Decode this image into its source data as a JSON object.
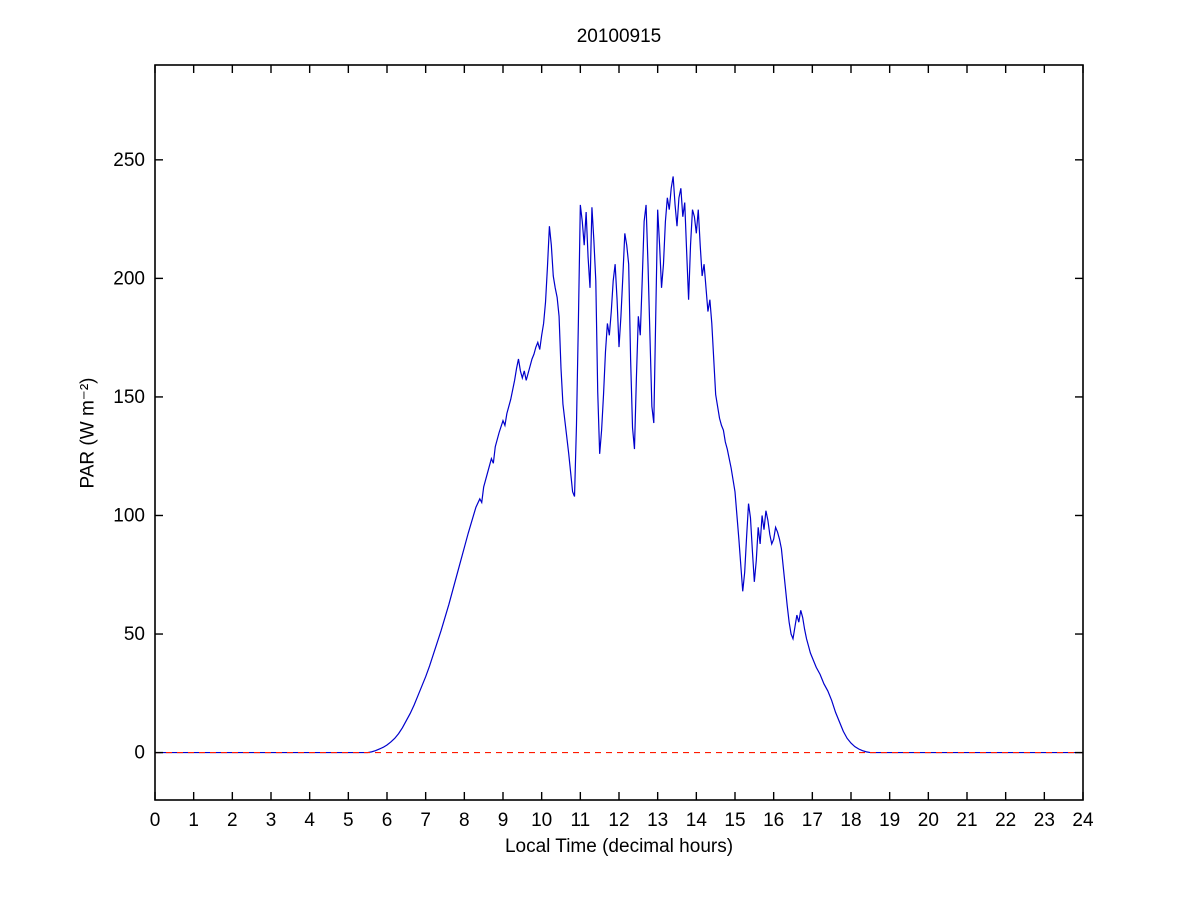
{
  "chart_data": {
    "type": "line",
    "title": "20100915",
    "xlabel": "Local Time (decimal hours)",
    "ylabel": "PAR (W m⁻²)",
    "xlim": [
      0,
      24
    ],
    "ylim": [
      -20,
      290
    ],
    "x_ticks": [
      0,
      1,
      2,
      3,
      4,
      5,
      6,
      7,
      8,
      9,
      10,
      11,
      12,
      13,
      14,
      15,
      16,
      17,
      18,
      19,
      20,
      21,
      22,
      23,
      24
    ],
    "y_ticks": [
      0,
      50,
      100,
      150,
      200,
      250
    ],
    "grid": false,
    "legend": null,
    "frame_color": "#000000",
    "series": [
      {
        "name": "par",
        "color": "#0000CC",
        "style": "solid",
        "width": 1.2,
        "points": [
          [
            0,
            0
          ],
          [
            0.5,
            0
          ],
          [
            1,
            0
          ],
          [
            1.5,
            0
          ],
          [
            2,
            0
          ],
          [
            2.5,
            0
          ],
          [
            3,
            0
          ],
          [
            3.5,
            0
          ],
          [
            4,
            0
          ],
          [
            4.5,
            0
          ],
          [
            5,
            0
          ],
          [
            5.3,
            0
          ],
          [
            5.5,
            0
          ],
          [
            5.6,
            0.3
          ],
          [
            5.7,
            0.8
          ],
          [
            5.8,
            1.5
          ],
          [
            5.9,
            2.2
          ],
          [
            6,
            3.2
          ],
          [
            6.1,
            4.5
          ],
          [
            6.2,
            6
          ],
          [
            6.3,
            8
          ],
          [
            6.4,
            10.5
          ],
          [
            6.5,
            13.5
          ],
          [
            6.6,
            16.5
          ],
          [
            6.7,
            20
          ],
          [
            6.8,
            24
          ],
          [
            6.9,
            28
          ],
          [
            7,
            32
          ],
          [
            7.1,
            36.5
          ],
          [
            7.2,
            41.5
          ],
          [
            7.3,
            46.5
          ],
          [
            7.4,
            51.5
          ],
          [
            7.5,
            57
          ],
          [
            7.6,
            62.5
          ],
          [
            7.7,
            68.5
          ],
          [
            7.8,
            74.5
          ],
          [
            7.9,
            80.5
          ],
          [
            8,
            86.5
          ],
          [
            8.1,
            92.5
          ],
          [
            8.2,
            98
          ],
          [
            8.3,
            103.5
          ],
          [
            8.4,
            107
          ],
          [
            8.45,
            105.5
          ],
          [
            8.5,
            112
          ],
          [
            8.6,
            118
          ],
          [
            8.7,
            124
          ],
          [
            8.75,
            122
          ],
          [
            8.8,
            129
          ],
          [
            8.9,
            135
          ],
          [
            9,
            140
          ],
          [
            9.05,
            138
          ],
          [
            9.1,
            143
          ],
          [
            9.2,
            149
          ],
          [
            9.3,
            157
          ],
          [
            9.35,
            162
          ],
          [
            9.4,
            166
          ],
          [
            9.45,
            161
          ],
          [
            9.5,
            158
          ],
          [
            9.55,
            161
          ],
          [
            9.6,
            157
          ],
          [
            9.65,
            160
          ],
          [
            9.7,
            163
          ],
          [
            9.75,
            166
          ],
          [
            9.8,
            168
          ],
          [
            9.85,
            171
          ],
          [
            9.9,
            173
          ],
          [
            9.95,
            170
          ],
          [
            10,
            176
          ],
          [
            10.05,
            181
          ],
          [
            10.1,
            190
          ],
          [
            10.15,
            205
          ],
          [
            10.2,
            222
          ],
          [
            10.25,
            214
          ],
          [
            10.3,
            201
          ],
          [
            10.35,
            196
          ],
          [
            10.4,
            192
          ],
          [
            10.45,
            184
          ],
          [
            10.5,
            162
          ],
          [
            10.55,
            147
          ],
          [
            10.6,
            140
          ],
          [
            10.65,
            133
          ],
          [
            10.7,
            126
          ],
          [
            10.75,
            118
          ],
          [
            10.8,
            110
          ],
          [
            10.85,
            108
          ],
          [
            10.9,
            138
          ],
          [
            10.95,
            182
          ],
          [
            11,
            231
          ],
          [
            11.05,
            224
          ],
          [
            11.1,
            214
          ],
          [
            11.15,
            228
          ],
          [
            11.2,
            209
          ],
          [
            11.25,
            196
          ],
          [
            11.3,
            230
          ],
          [
            11.35,
            216
          ],
          [
            11.4,
            199
          ],
          [
            11.45,
            152
          ],
          [
            11.5,
            126
          ],
          [
            11.55,
            136
          ],
          [
            11.6,
            151
          ],
          [
            11.65,
            169
          ],
          [
            11.7,
            181
          ],
          [
            11.75,
            176
          ],
          [
            11.8,
            186
          ],
          [
            11.85,
            199
          ],
          [
            11.9,
            206
          ],
          [
            11.95,
            191
          ],
          [
            12,
            171
          ],
          [
            12.05,
            184
          ],
          [
            12.1,
            201
          ],
          [
            12.15,
            219
          ],
          [
            12.2,
            214
          ],
          [
            12.25,
            206
          ],
          [
            12.3,
            166
          ],
          [
            12.35,
            137
          ],
          [
            12.4,
            128
          ],
          [
            12.45,
            158
          ],
          [
            12.5,
            184
          ],
          [
            12.55,
            176
          ],
          [
            12.6,
            199
          ],
          [
            12.65,
            224
          ],
          [
            12.7,
            231
          ],
          [
            12.75,
            206
          ],
          [
            12.8,
            176
          ],
          [
            12.85,
            146
          ],
          [
            12.9,
            139
          ],
          [
            12.95,
            184
          ],
          [
            13,
            229
          ],
          [
            13.05,
            214
          ],
          [
            13.1,
            196
          ],
          [
            13.15,
            206
          ],
          [
            13.2,
            224
          ],
          [
            13.25,
            234
          ],
          [
            13.3,
            229
          ],
          [
            13.35,
            238
          ],
          [
            13.4,
            243
          ],
          [
            13.45,
            231
          ],
          [
            13.5,
            222
          ],
          [
            13.55,
            234
          ],
          [
            13.6,
            238
          ],
          [
            13.65,
            226
          ],
          [
            13.7,
            232
          ],
          [
            13.75,
            211
          ],
          [
            13.8,
            191
          ],
          [
            13.85,
            214
          ],
          [
            13.9,
            229
          ],
          [
            13.95,
            226
          ],
          [
            14,
            219
          ],
          [
            14.05,
            229
          ],
          [
            14.1,
            214
          ],
          [
            14.15,
            201
          ],
          [
            14.2,
            206
          ],
          [
            14.25,
            196
          ],
          [
            14.3,
            186
          ],
          [
            14.35,
            191
          ],
          [
            14.4,
            181
          ],
          [
            14.45,
            166
          ],
          [
            14.5,
            151
          ],
          [
            14.55,
            146
          ],
          [
            14.6,
            141
          ],
          [
            14.65,
            138
          ],
          [
            14.7,
            136
          ],
          [
            14.75,
            131
          ],
          [
            14.8,
            128
          ],
          [
            14.85,
            124
          ],
          [
            14.9,
            120
          ],
          [
            14.95,
            115
          ],
          [
            15,
            110
          ],
          [
            15.05,
            100
          ],
          [
            15.1,
            90
          ],
          [
            15.15,
            79
          ],
          [
            15.2,
            68
          ],
          [
            15.25,
            76
          ],
          [
            15.3,
            91
          ],
          [
            15.35,
            105
          ],
          [
            15.4,
            99
          ],
          [
            15.45,
            85
          ],
          [
            15.5,
            72
          ],
          [
            15.55,
            81
          ],
          [
            15.6,
            95
          ],
          [
            15.65,
            88
          ],
          [
            15.7,
            100
          ],
          [
            15.75,
            94
          ],
          [
            15.8,
            102
          ],
          [
            15.85,
            98
          ],
          [
            15.9,
            92
          ],
          [
            15.95,
            88
          ],
          [
            16,
            90
          ],
          [
            16.05,
            95
          ],
          [
            16.1,
            93
          ],
          [
            16.15,
            90
          ],
          [
            16.2,
            86
          ],
          [
            16.25,
            78
          ],
          [
            16.3,
            70
          ],
          [
            16.35,
            62
          ],
          [
            16.4,
            55
          ],
          [
            16.45,
            50
          ],
          [
            16.5,
            48
          ],
          [
            16.55,
            53
          ],
          [
            16.6,
            58
          ],
          [
            16.65,
            55
          ],
          [
            16.7,
            60
          ],
          [
            16.75,
            57
          ],
          [
            16.8,
            52
          ],
          [
            16.85,
            48
          ],
          [
            16.9,
            45
          ],
          [
            16.95,
            42
          ],
          [
            17,
            40
          ],
          [
            17.1,
            36
          ],
          [
            17.2,
            33
          ],
          [
            17.3,
            29
          ],
          [
            17.4,
            26
          ],
          [
            17.5,
            22
          ],
          [
            17.6,
            17
          ],
          [
            17.7,
            13
          ],
          [
            17.8,
            9
          ],
          [
            17.9,
            6
          ],
          [
            18,
            4
          ],
          [
            18.1,
            2.5
          ],
          [
            18.2,
            1.5
          ],
          [
            18.3,
            0.8
          ],
          [
            18.4,
            0.3
          ],
          [
            18.5,
            0
          ],
          [
            19,
            0
          ],
          [
            19.5,
            0
          ],
          [
            20,
            0
          ],
          [
            20.5,
            0
          ],
          [
            21,
            0
          ],
          [
            21.5,
            0
          ],
          [
            22,
            0
          ],
          [
            22.5,
            0
          ],
          [
            23,
            0
          ],
          [
            23.5,
            0
          ],
          [
            24,
            0
          ]
        ]
      },
      {
        "name": "zero-reference",
        "color": "#FF1A00",
        "style": "dashed",
        "width": 1.2,
        "points": [
          [
            0,
            0
          ],
          [
            24,
            0
          ]
        ]
      }
    ]
  }
}
